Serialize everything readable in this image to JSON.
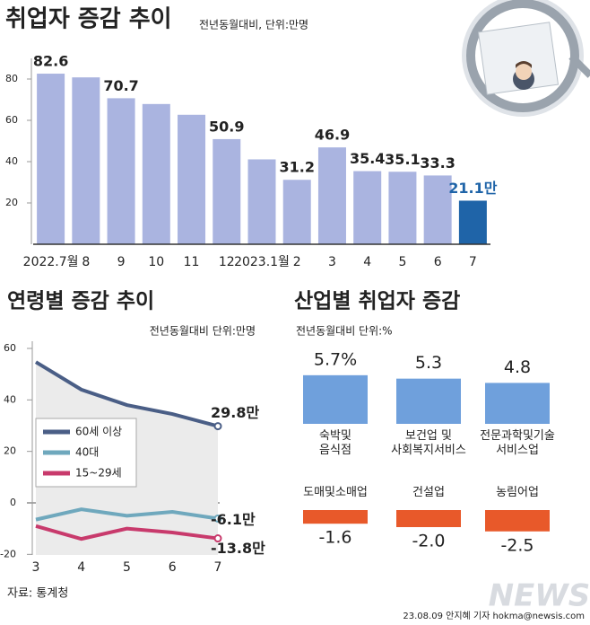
{
  "chart_data": [
    {
      "type": "bar",
      "title": "취업자 증감 추이",
      "subtitle": "전년동월대비, 단위:만명",
      "categories": [
        "2022.7월",
        "8",
        "9",
        "10",
        "11",
        "12",
        "2023.1월",
        "2",
        "3",
        "4",
        "5",
        "6",
        "7"
      ],
      "values": [
        82.6,
        80.8,
        70.7,
        67.9,
        62.7,
        50.9,
        41.1,
        31.2,
        46.9,
        35.4,
        35.1,
        33.3,
        21.1
      ],
      "value_labels": [
        "82.6",
        null,
        "70.7",
        null,
        null,
        "50.9",
        null,
        "31.2",
        "46.9",
        "35.4",
        "35.1",
        "33.3",
        "21.1만"
      ],
      "colors": [
        "#aab4e0",
        "#aab4e0",
        "#aab4e0",
        "#aab4e0",
        "#aab4e0",
        "#aab4e0",
        "#aab4e0",
        "#aab4e0",
        "#aab4e0",
        "#aab4e0",
        "#aab4e0",
        "#aab4e0",
        "#1f64a8"
      ],
      "ylim": [
        0,
        90
      ],
      "yticks": [
        20,
        40,
        60,
        80
      ]
    },
    {
      "type": "line",
      "title": "연령별 증감 추이",
      "subtitle": "전년동월대비 단위:만명",
      "categories": [
        "3",
        "4",
        "5",
        "6",
        "7"
      ],
      "series": [
        {
          "name": "60세 이상",
          "color": "#4a5e86",
          "values": [
            54.7,
            44.0,
            38.0,
            34.5,
            29.8
          ],
          "value_labels": [
            null,
            null,
            null,
            null,
            "29.8만"
          ]
        },
        {
          "name": "40대",
          "color": "#6fa8bd",
          "values": [
            -6.5,
            -2.5,
            -5.0,
            -3.5,
            -6.1
          ],
          "value_labels": [
            null,
            null,
            null,
            null,
            "-6.1만"
          ]
        },
        {
          "name": "15~29세",
          "color": "#c83a6c",
          "values": [
            -9.0,
            -14.0,
            -10.0,
            -11.5,
            -13.8
          ],
          "value_labels": [
            null,
            null,
            null,
            null,
            "-13.8만"
          ]
        }
      ],
      "ylim": [
        -20,
        60
      ],
      "yticks": [
        -20,
        0,
        20,
        40,
        60
      ]
    },
    {
      "type": "bar",
      "title": "산업별 취업자 증감",
      "subtitle": "전년동월대비 단위:%",
      "categories": [
        "숙박및\n음식점",
        "보건업 및\n사회복지서비스",
        "전문과학및기술\n서비스업",
        "도매및소매업",
        "건설업",
        "농림어업"
      ],
      "values": [
        5.7,
        5.3,
        4.8,
        -1.6,
        -2.0,
        -2.5
      ],
      "value_labels": [
        "5.7%",
        "5.3",
        "4.8",
        "-1.6",
        "-2.0",
        "-2.5"
      ],
      "colors": [
        "#6fa0dc",
        "#6fa0dc",
        "#6fa0dc",
        "#e8592a",
        "#e8592a",
        "#e8592a"
      ]
    }
  ],
  "source": "자료: 통계청",
  "credit": "23.08.09 안지혜 기자 hokma@newsis.com",
  "watermark": "NEWSIS"
}
